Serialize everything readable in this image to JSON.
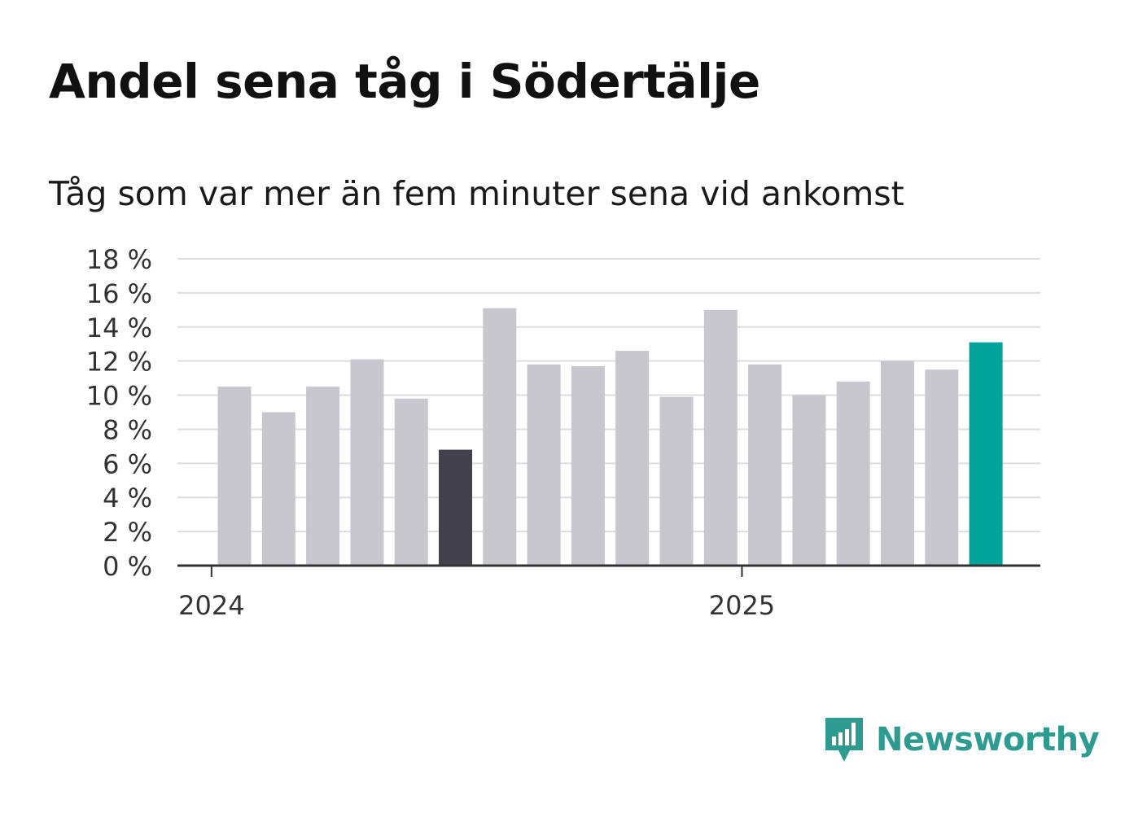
{
  "title": "Andel sena tåg i Södertälje",
  "subtitle": "Tåg som var mer än fem minuter sena vid ankomst",
  "brand": {
    "name": "Newsworthy",
    "color": "#2e9b91"
  },
  "colors": {
    "default_bar": "#c8c7d0",
    "min_bar": "#43414c",
    "latest_bar": "#00a39a",
    "grid": "#dddddd",
    "axis": "#333333"
  },
  "chart_data": {
    "type": "bar",
    "title": "Andel sena tåg i Södertälje",
    "subtitle": "Tåg som var mer än fem minuter sena vid ankomst",
    "xlabel": "",
    "ylabel": "",
    "ylim": [
      0,
      18
    ],
    "yticks": [
      0,
      2,
      4,
      6,
      8,
      10,
      12,
      14,
      16,
      18
    ],
    "ytick_labels": [
      "0 %",
      "2 %",
      "4 %",
      "6 %",
      "8 %",
      "10 %",
      "12 %",
      "14 %",
      "16 %",
      "18 %"
    ],
    "x_tick_labels": [
      {
        "label": "2024",
        "at_bar_index": -0.5
      },
      {
        "label": "2025",
        "at_bar_index": 11.5
      }
    ],
    "grid": true,
    "values": [
      10.5,
      9.0,
      10.5,
      12.1,
      9.8,
      6.8,
      15.1,
      11.8,
      11.7,
      12.6,
      9.9,
      15.0,
      11.8,
      10.0,
      10.8,
      12.0,
      11.5,
      13.1
    ],
    "highlight": {
      "min_index": 5,
      "latest_index": 17
    }
  }
}
